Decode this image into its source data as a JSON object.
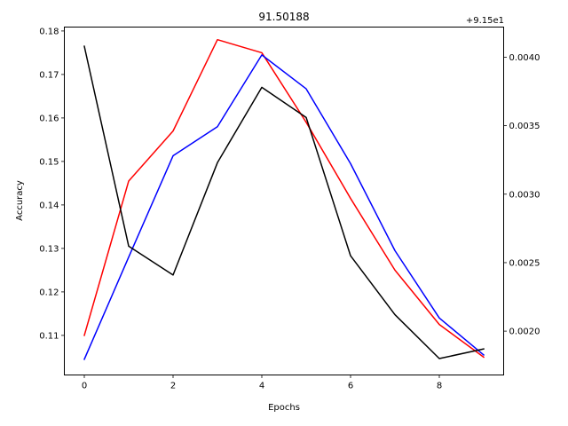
{
  "chart_data": {
    "type": "line",
    "title": "91.50188",
    "xlabel": "Epochs",
    "ylabel": "Accuracy",
    "offset_label": "+9.15e1",
    "x": [
      0,
      1,
      2,
      3,
      4,
      5,
      6,
      7,
      8,
      9
    ],
    "xlim": [
      -0.45,
      9.45
    ],
    "ylim": [
      0.1009,
      0.1809
    ],
    "y2lim": [
      0.00168,
      0.00422
    ],
    "xticks": [
      0,
      2,
      4,
      6,
      8
    ],
    "yticks": [
      0.11,
      0.12,
      0.13,
      0.14,
      0.15,
      0.16,
      0.17,
      0.18
    ],
    "y2ticks": [
      0.002,
      0.0025,
      0.003,
      0.0035,
      0.004
    ],
    "xtick_labels": [
      "0",
      "2",
      "4",
      "6",
      "8"
    ],
    "ytick_labels": [
      "0.11",
      "0.12",
      "0.13",
      "0.14",
      "0.15",
      "0.16",
      "0.17",
      "0.18"
    ],
    "y2tick_labels": [
      "0.0020",
      "0.0025",
      "0.0030",
      "0.0035",
      "0.0040"
    ],
    "grid": false,
    "series": [
      {
        "color": "#ff0000",
        "axis": "left",
        "values": [
          0.11,
          0.1455,
          0.157,
          0.178,
          0.175,
          0.159,
          0.1415,
          0.125,
          0.1125,
          0.105
        ]
      },
      {
        "color": "#0000ff",
        "axis": "left",
        "values": [
          0.1045,
          0.128,
          0.1513,
          0.158,
          0.1745,
          0.1667,
          0.1495,
          0.1295,
          0.114,
          0.1055
        ]
      },
      {
        "color": "#000000",
        "axis": "right",
        "values": [
          0.00408,
          0.00262,
          0.00241,
          0.00323,
          0.00378,
          0.00356,
          0.00255,
          0.00212,
          0.0018,
          0.00187
        ]
      }
    ]
  }
}
